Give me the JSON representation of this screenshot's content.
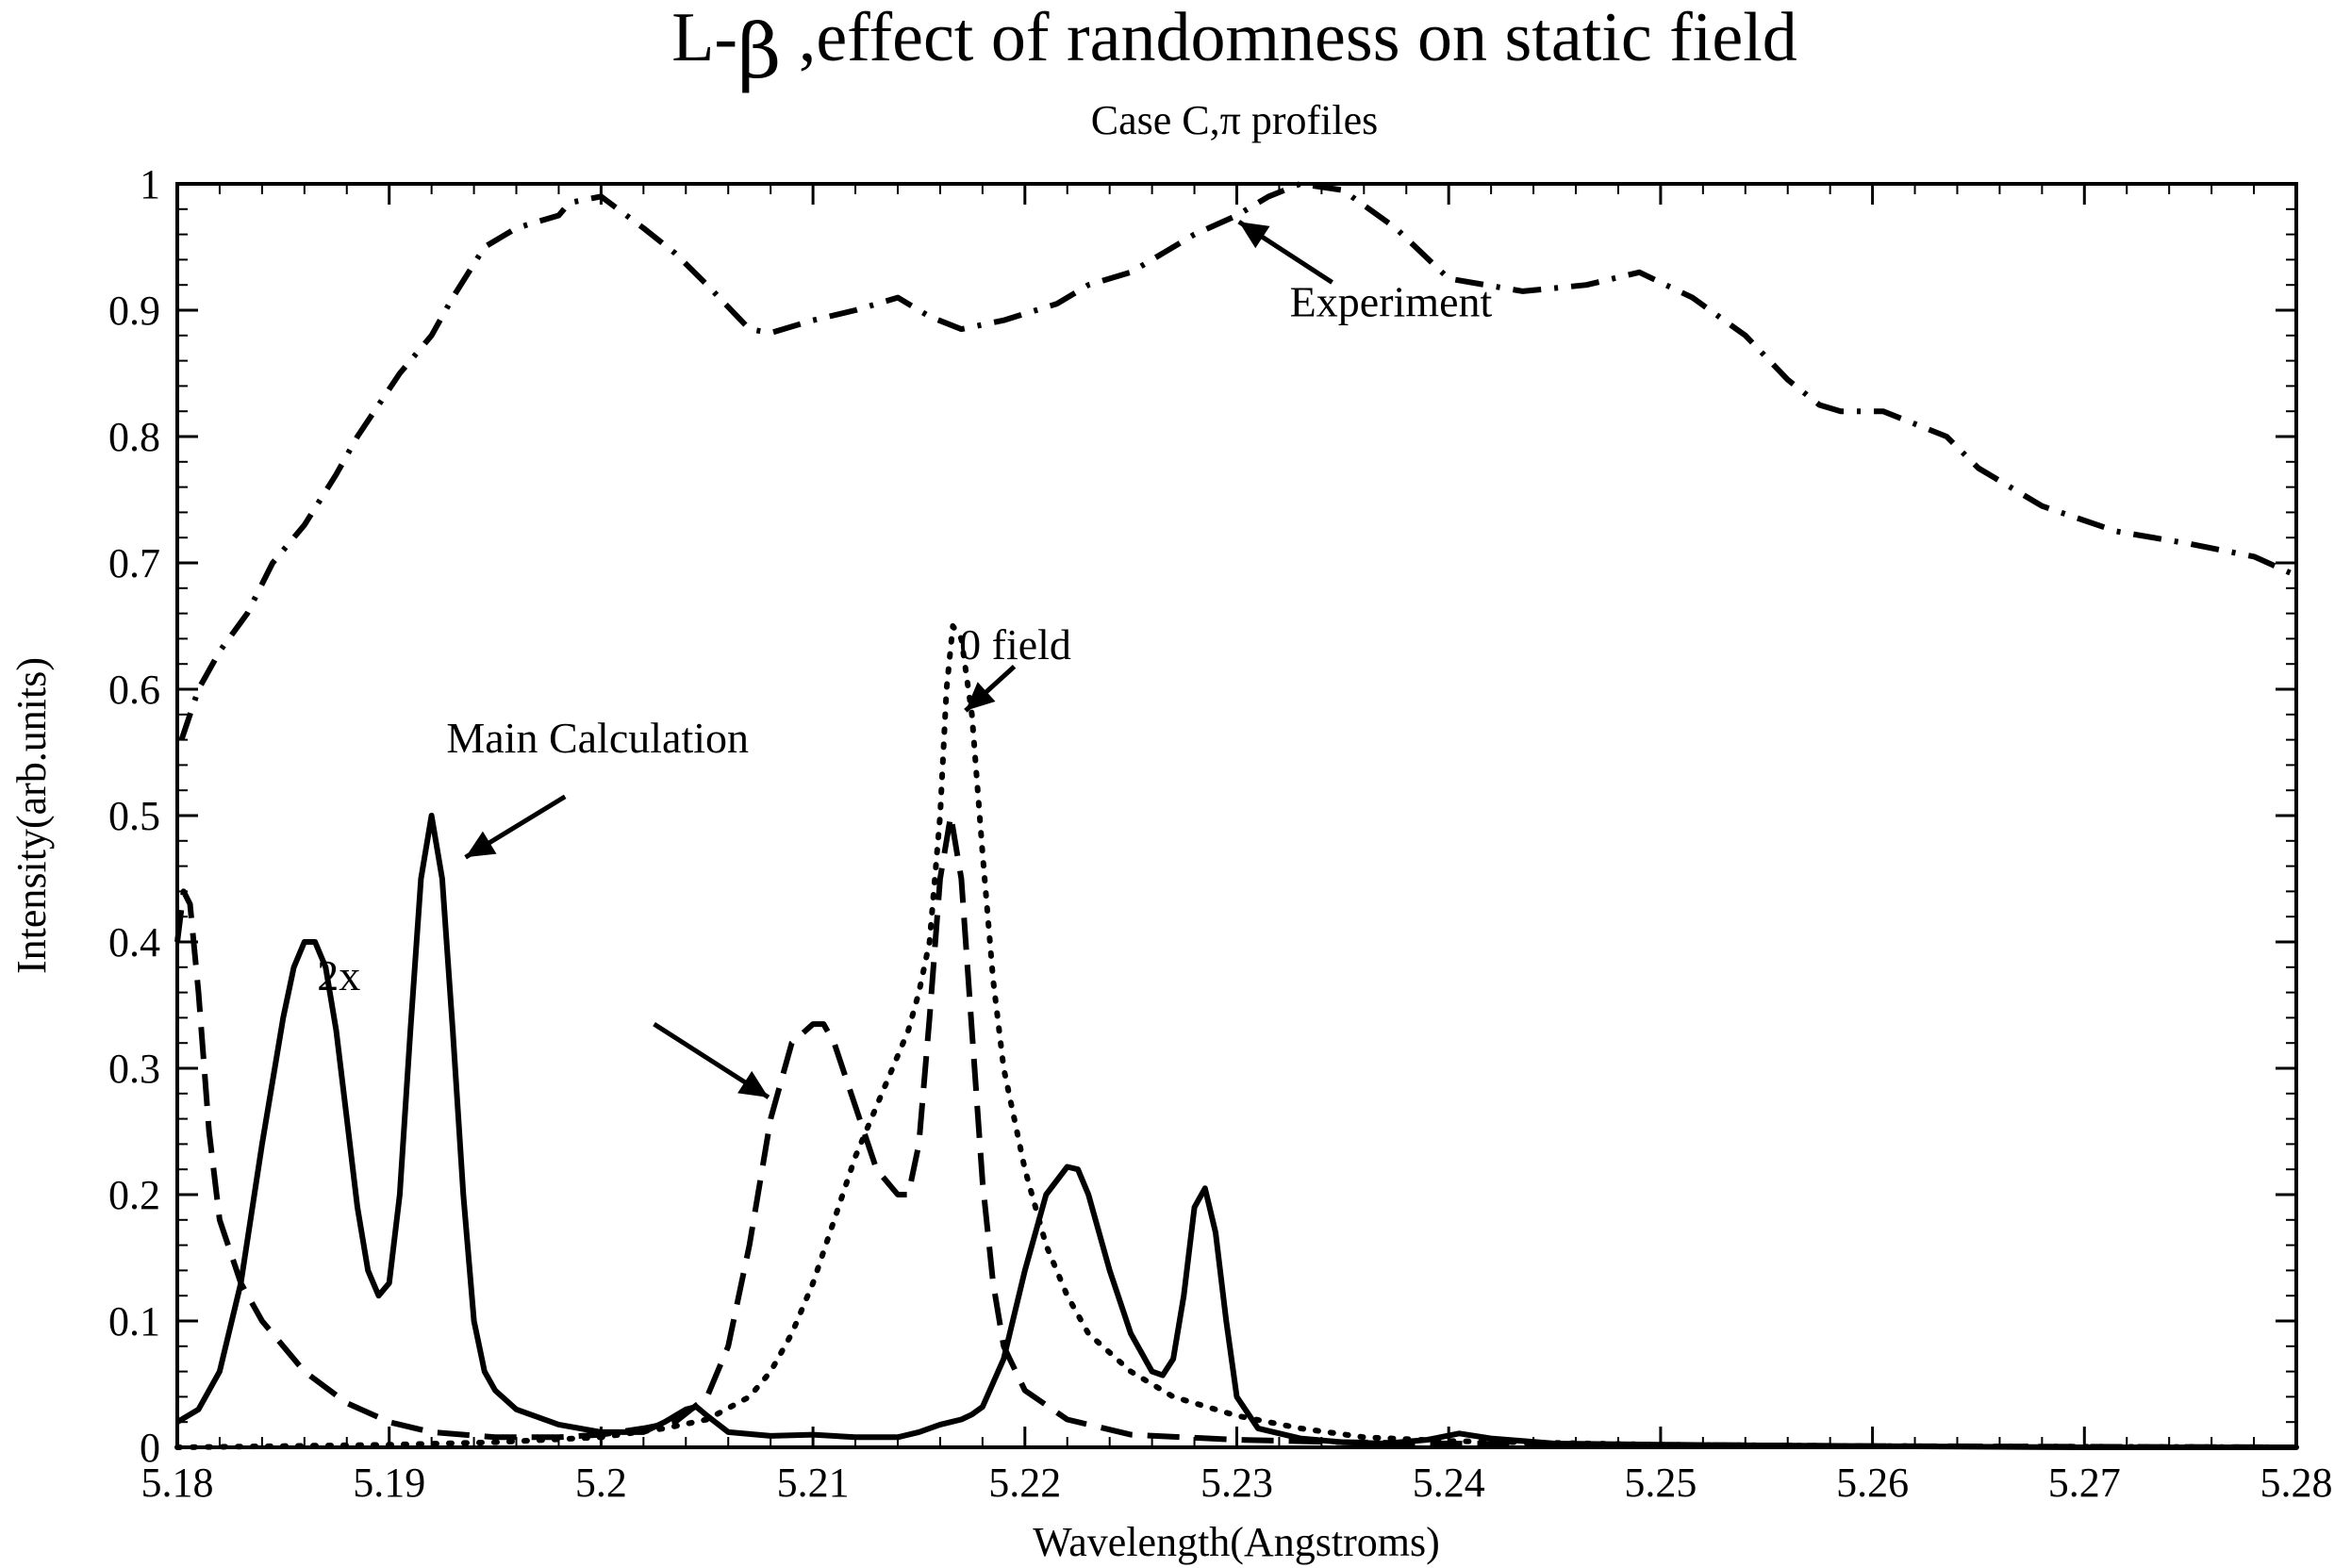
{
  "chart_data": {
    "type": "line",
    "title_prefix": "L-",
    "title_symbol": "β",
    "title_suffix": " ,effect of randomness on static field",
    "subtitle": "Case C,π profiles",
    "xlabel": "Wavelength(Angstroms)",
    "ylabel": "Intensity(arb.units)",
    "xlim": [
      5.18,
      5.28
    ],
    "ylim": [
      0,
      1
    ],
    "x_ticks": [
      "5.18",
      "5.19",
      "5.2",
      "5.21",
      "5.22",
      "5.23",
      "5.24",
      "5.25",
      "5.26",
      "5.27",
      "5.28"
    ],
    "y_ticks": [
      "0",
      "0.1",
      "0.2",
      "0.3",
      "0.4",
      "0.5",
      "0.6",
      "0.7",
      "0.8",
      "0.9",
      "1"
    ],
    "grid": false,
    "series": [
      {
        "key": "experiment",
        "style": "dashdot",
        "x": [
          5.1802,
          5.181,
          5.182,
          5.1833,
          5.1845,
          5.186,
          5.1875,
          5.1885,
          5.1905,
          5.192,
          5.193,
          5.1945,
          5.196,
          5.198,
          5.1985,
          5.2,
          5.202,
          5.2035,
          5.205,
          5.207,
          5.208,
          5.21,
          5.212,
          5.214,
          5.2155,
          5.217,
          5.219,
          5.2215,
          5.223,
          5.225,
          5.2265,
          5.228,
          5.23,
          5.2315,
          5.233,
          5.235,
          5.2375,
          5.24,
          5.2435,
          5.2465,
          5.249,
          5.2515,
          5.254,
          5.256,
          5.2575,
          5.2585,
          5.2605,
          5.262,
          5.2635,
          5.265,
          5.268,
          5.2715,
          5.275,
          5.278,
          5.28
        ],
        "y": [
          0.56,
          0.6,
          0.63,
          0.66,
          0.7,
          0.73,
          0.77,
          0.8,
          0.85,
          0.88,
          0.91,
          0.95,
          0.965,
          0.975,
          0.985,
          0.99,
          0.965,
          0.945,
          0.92,
          0.885,
          0.882,
          0.892,
          0.9,
          0.91,
          0.895,
          0.885,
          0.892,
          0.905,
          0.92,
          0.93,
          0.945,
          0.96,
          0.975,
          0.99,
          1.0,
          0.995,
          0.965,
          0.925,
          0.915,
          0.92,
          0.93,
          0.91,
          0.88,
          0.845,
          0.825,
          0.82,
          0.82,
          0.81,
          0.8,
          0.775,
          0.745,
          0.725,
          0.715,
          0.705,
          0.69
        ]
      },
      {
        "key": "main_calculation",
        "style": "solid",
        "x": [
          5.18,
          5.181,
          5.182,
          5.183,
          5.184,
          5.185,
          5.1855,
          5.186,
          5.1865,
          5.187,
          5.1875,
          5.188,
          5.1885,
          5.189,
          5.1895,
          5.19,
          5.1905,
          5.191,
          5.1915,
          5.192,
          5.1925,
          5.193,
          5.1935,
          5.194,
          5.1945,
          5.195,
          5.196,
          5.198,
          5.2,
          5.202,
          5.203,
          5.204,
          5.2045,
          5.205,
          5.206,
          5.208,
          5.21,
          5.212,
          5.214,
          5.215,
          5.216,
          5.217,
          5.2175,
          5.218,
          5.219,
          5.22,
          5.221,
          5.222,
          5.2225,
          5.223,
          5.224,
          5.225,
          5.226,
          5.2265,
          5.227,
          5.2275,
          5.228,
          5.2285,
          5.229,
          5.2295,
          5.23,
          5.231,
          5.233,
          5.235,
          5.237,
          5.239,
          5.2405,
          5.242,
          5.245,
          5.25,
          5.26,
          5.27,
          5.28
        ],
        "y": [
          0.02,
          0.03,
          0.06,
          0.13,
          0.24,
          0.34,
          0.38,
          0.4,
          0.4,
          0.38,
          0.33,
          0.26,
          0.19,
          0.14,
          0.12,
          0.13,
          0.2,
          0.33,
          0.45,
          0.5,
          0.45,
          0.33,
          0.2,
          0.1,
          0.06,
          0.045,
          0.03,
          0.018,
          0.012,
          0.012,
          0.02,
          0.03,
          0.032,
          0.025,
          0.012,
          0.009,
          0.01,
          0.008,
          0.008,
          0.012,
          0.018,
          0.022,
          0.026,
          0.032,
          0.07,
          0.14,
          0.2,
          0.222,
          0.22,
          0.2,
          0.14,
          0.09,
          0.06,
          0.057,
          0.07,
          0.12,
          0.19,
          0.205,
          0.17,
          0.1,
          0.04,
          0.015,
          0.007,
          0.004,
          0.003,
          0.006,
          0.011,
          0.007,
          0.003,
          0.002,
          0.001,
          0.0,
          0.0
        ]
      },
      {
        "key": "two_x",
        "style": "dashed",
        "x": [
          5.18,
          5.1803,
          5.1806,
          5.181,
          5.1815,
          5.182,
          5.183,
          5.184,
          5.186,
          5.188,
          5.19,
          5.192,
          5.195,
          5.198,
          5.2,
          5.202,
          5.2035,
          5.205,
          5.206,
          5.207,
          5.208,
          5.209,
          5.21,
          5.2105,
          5.211,
          5.212,
          5.213,
          5.214,
          5.2145,
          5.215,
          5.2155,
          5.216,
          5.2165,
          5.217,
          5.2175,
          5.218,
          5.2185,
          5.219,
          5.22,
          5.222,
          5.225,
          5.23,
          5.235,
          5.24,
          5.25,
          5.26,
          5.28
        ],
        "y": [
          0.4,
          0.44,
          0.43,
          0.36,
          0.25,
          0.18,
          0.13,
          0.1,
          0.06,
          0.035,
          0.02,
          0.012,
          0.008,
          0.008,
          0.01,
          0.015,
          0.02,
          0.04,
          0.08,
          0.16,
          0.26,
          0.32,
          0.335,
          0.335,
          0.32,
          0.27,
          0.22,
          0.2,
          0.2,
          0.24,
          0.34,
          0.45,
          0.5,
          0.45,
          0.33,
          0.21,
          0.13,
          0.08,
          0.045,
          0.022,
          0.01,
          0.006,
          0.004,
          0.003,
          0.002,
          0.001,
          0.0
        ]
      },
      {
        "key": "zero_field",
        "style": "dotted",
        "x": [
          5.18,
          5.185,
          5.19,
          5.195,
          5.2,
          5.203,
          5.205,
          5.207,
          5.208,
          5.209,
          5.21,
          5.211,
          5.212,
          5.213,
          5.214,
          5.2145,
          5.215,
          5.2155,
          5.216,
          5.2163,
          5.2166,
          5.217,
          5.2175,
          5.218,
          5.2185,
          5.219,
          5.22,
          5.221,
          5.222,
          5.223,
          5.225,
          5.227,
          5.23,
          5.233,
          5.236,
          5.24,
          5.25,
          5.26,
          5.28
        ],
        "y": [
          0.0,
          0.001,
          0.002,
          0.004,
          0.008,
          0.015,
          0.022,
          0.04,
          0.06,
          0.09,
          0.13,
          0.18,
          0.23,
          0.27,
          0.31,
          0.33,
          0.36,
          0.4,
          0.5,
          0.6,
          0.65,
          0.64,
          0.58,
          0.47,
          0.37,
          0.3,
          0.22,
          0.16,
          0.12,
          0.09,
          0.06,
          0.04,
          0.025,
          0.015,
          0.008,
          0.005,
          0.002,
          0.001,
          0.0
        ]
      }
    ],
    "annotations": [
      {
        "key": "experiment",
        "text": "Experiment",
        "tx": 5.2325,
        "ty": 0.895,
        "arrow_from": [
          5.2345,
          0.922
        ],
        "arrow_to": [
          5.2301,
          0.97
        ]
      },
      {
        "key": "zero_field",
        "text": "0 field",
        "tx": 5.2169,
        "ty": 0.624,
        "arrow_from": [
          5.2195,
          0.618
        ],
        "arrow_to": [
          5.2172,
          0.583
        ]
      },
      {
        "key": "main_calculation",
        "text": "Main Calculation",
        "tx": 5.1927,
        "ty": 0.55,
        "arrow_from": [
          5.1983,
          0.515
        ],
        "arrow_to": [
          5.1936,
          0.467
        ]
      },
      {
        "key": "two_x",
        "text": "2x",
        "tx": 5.1866,
        "ty": 0.362,
        "arrow_from": [
          5.2025,
          0.335
        ],
        "arrow_to": [
          5.2079,
          0.277
        ]
      }
    ]
  }
}
